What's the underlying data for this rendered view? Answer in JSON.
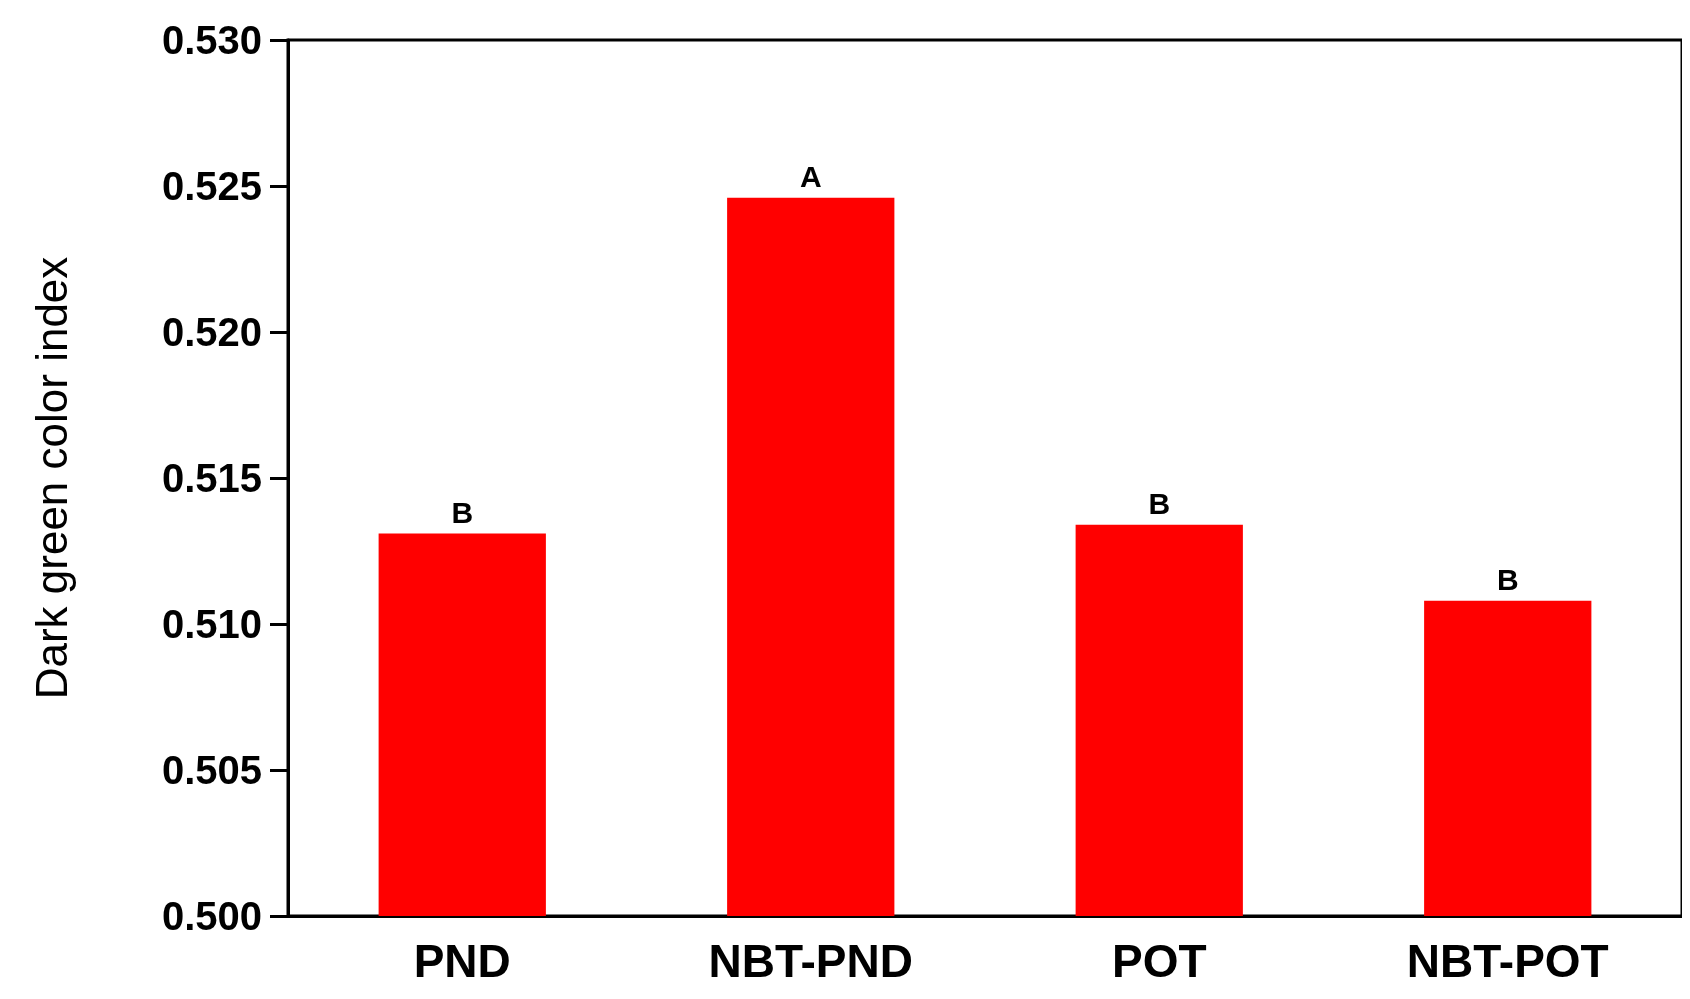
{
  "chart_data": {
    "type": "bar",
    "ylabel": "Dark green color index",
    "categories": [
      "PND",
      "NBT-PND",
      "POT",
      "NBT-POT"
    ],
    "values": [
      0.5131,
      0.5246,
      0.5134,
      0.5108
    ],
    "color": "#ff0000",
    "ylim": [
      0.5,
      0.53
    ],
    "yticks": [
      {
        "value": 0.5,
        "label": "0.500"
      },
      {
        "value": 0.505,
        "label": "0.505"
      },
      {
        "value": 0.51,
        "label": "0.510"
      },
      {
        "value": 0.515,
        "label": "0.515"
      },
      {
        "value": 0.52,
        "label": "0.520"
      },
      {
        "value": 0.525,
        "label": "0.525"
      },
      {
        "value": 0.53,
        "label": "0.530"
      }
    ],
    "annotations": [
      {
        "text": "B",
        "x": "PND",
        "y": 0.5131
      },
      {
        "text": "A",
        "x": "NBT-PND",
        "y": 0.5246
      },
      {
        "text": "B",
        "x": "POT",
        "y": 0.5134
      },
      {
        "text": "B",
        "x": "NBT-POT",
        "y": 0.5108
      }
    ],
    "grid": false
  }
}
